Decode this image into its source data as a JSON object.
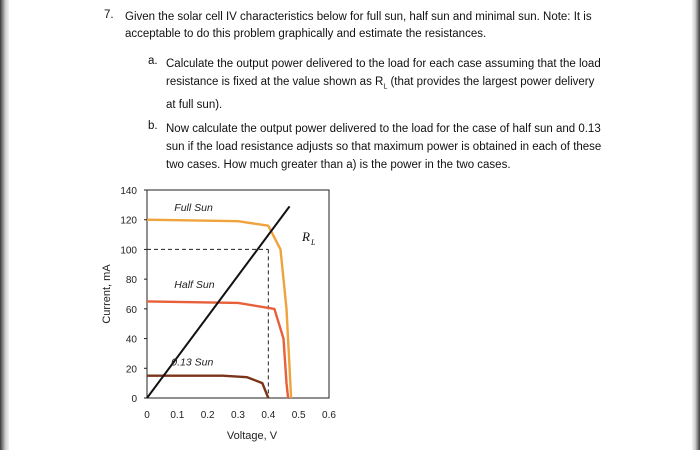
{
  "question": {
    "number": "7.",
    "text": "Given the solar cell IV characteristics below for full sun, half sun and minimal sun.  Note: It is acceptable to do this problem graphically and estimate the resistances.",
    "parts": [
      {
        "letter": "a.",
        "text_before": "Calculate the output power delivered to the load for each case assuming that the load resistance is fixed at the value shown as R",
        "subscript": "L",
        "text_after": " (that provides the largest power delivery at full sun)."
      },
      {
        "letter": "b.",
        "text": "Now calculate the output power delivered to the load for the case of half sun and 0.13 sun if the load resistance adjusts so that maximum power is obtained in each of these two cases.  How much greater than a) is the power in the two cases."
      }
    ]
  },
  "chart_data": {
    "type": "line",
    "xlabel": "Voltage, V",
    "ylabel": "Current, mA",
    "xlim": [
      0,
      0.6
    ],
    "ylim": [
      0,
      140
    ],
    "x_ticks": [
      "0",
      "0.1",
      "0.2",
      "0.3",
      "0.4",
      "0.5",
      "0.6"
    ],
    "y_ticks": [
      "0",
      "20",
      "40",
      "60",
      "80",
      "100",
      "120",
      "140"
    ],
    "grid": false,
    "series": [
      {
        "name": "Full Sun",
        "color": "#f0a23c",
        "points": [
          [
            0,
            120
          ],
          [
            0.3,
            119
          ],
          [
            0.4,
            116
          ],
          [
            0.44,
            100
          ],
          [
            0.46,
            60
          ],
          [
            0.47,
            20
          ],
          [
            0.475,
            0
          ]
        ]
      },
      {
        "name": "Half Sun",
        "color": "#e8603a",
        "points": [
          [
            0,
            65
          ],
          [
            0.3,
            64
          ],
          [
            0.42,
            60
          ],
          [
            0.45,
            40
          ],
          [
            0.46,
            10
          ],
          [
            0.465,
            0
          ]
        ]
      },
      {
        "name": "0.13 Sun",
        "color": "#7a3418",
        "points": [
          [
            0,
            15
          ],
          [
            0.25,
            15
          ],
          [
            0.33,
            14
          ],
          [
            0.38,
            10
          ],
          [
            0.4,
            0
          ]
        ]
      }
    ],
    "load_line": {
      "label": "R",
      "label_sub": "L",
      "color": "#111111",
      "points": [
        [
          0,
          0
        ],
        [
          0.47,
          129
        ]
      ]
    },
    "guide_lines": {
      "style": "dashed",
      "operating_point": [
        0.4,
        100
      ]
    }
  }
}
